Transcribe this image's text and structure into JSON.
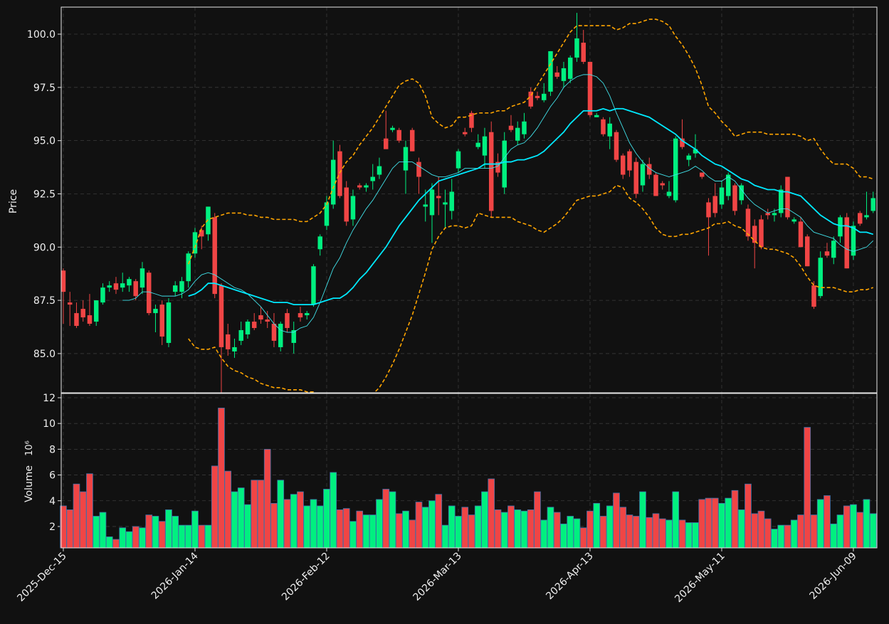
{
  "chart_data": {
    "type": "candlestick",
    "price_label": "Price",
    "volume_label": "Volume",
    "volume_scale_label": "10⁶",
    "categories": [
      "2025-Dec-15",
      null,
      null,
      null,
      null,
      null,
      null,
      null,
      null,
      null,
      null,
      null,
      null,
      null,
      null,
      null,
      null,
      null,
      null,
      null,
      "2026-Jan-14",
      null,
      null,
      null,
      null,
      null,
      null,
      null,
      null,
      null,
      null,
      null,
      null,
      null,
      null,
      null,
      null,
      null,
      null,
      null,
      "2026-Feb-12",
      null,
      null,
      null,
      null,
      null,
      null,
      null,
      null,
      null,
      null,
      null,
      null,
      null,
      null,
      null,
      null,
      null,
      null,
      null,
      "2026-Mar-13",
      null,
      null,
      null,
      null,
      null,
      null,
      null,
      null,
      null,
      null,
      null,
      null,
      null,
      null,
      null,
      null,
      null,
      null,
      null,
      "2026-Apr-13",
      null,
      null,
      null,
      null,
      null,
      null,
      null,
      null,
      null,
      null,
      null,
      null,
      null,
      null,
      null,
      null,
      null,
      null,
      null,
      "2026-May-11",
      null,
      null,
      null,
      null,
      null,
      null,
      null,
      null,
      null,
      null,
      null,
      null,
      null,
      null,
      null,
      null,
      null,
      null,
      null,
      "2026-Jun-09",
      null,
      null,
      null
    ],
    "open": [
      88.9,
      87.4,
      86.9,
      87.1,
      86.8,
      86.5,
      87.4,
      88.1,
      88.3,
      88.1,
      88.2,
      88.4,
      88.1,
      88.8,
      86.9,
      87.3,
      85.5,
      87.9,
      87.9,
      88.4,
      89.7,
      90.8,
      90.6,
      91.4,
      88.2,
      85.9,
      85.1,
      85.6,
      85.9,
      86.5,
      86.8,
      86.6,
      86.4,
      85.3,
      86.9,
      85.5,
      86.9,
      86.8,
      87.3,
      89.9,
      91.0,
      92.0,
      94.5,
      92.8,
      91.3,
      92.9,
      92.8,
      93.1,
      93.4,
      95.1,
      95.5,
      95.5,
      93.6,
      95.5,
      94.0,
      91.9,
      91.5,
      92.4,
      92.0,
      91.7,
      93.7,
      95.4,
      96.3,
      94.7,
      94.3,
      95.4,
      94.0,
      92.8,
      95.7,
      95.0,
      95.3,
      97.3,
      97.1,
      96.9,
      97.3,
      98.2,
      97.8,
      97.9,
      98.9,
      99.6,
      98.7,
      96.1,
      96.0,
      95.2,
      95.4,
      94.3,
      94.5,
      94.0,
      92.9,
      93.9,
      93.4,
      93.0,
      92.4,
      92.2,
      95.1,
      94.1,
      94.4,
      93.5,
      92.1,
      92.4,
      92.0,
      92.4,
      92.9,
      92.2,
      91.8,
      91.0,
      91.3,
      91.6,
      91.5,
      91.6,
      93.3,
      91.2,
      91.2,
      90.5,
      88.2,
      87.7,
      89.8,
      89.5,
      90.5,
      91.4,
      89.6,
      91.6,
      91.4,
      91.7
    ],
    "high": [
      89.0,
      87.9,
      87.4,
      87.5,
      87.8,
      87.5,
      88.3,
      88.4,
      88.6,
      88.8,
      88.6,
      88.5,
      89.3,
      88.9,
      87.3,
      87.5,
      87.6,
      88.4,
      88.6,
      89.8,
      90.9,
      91.0,
      91.9,
      91.6,
      88.3,
      86.4,
      85.7,
      86.5,
      86.6,
      86.9,
      87.2,
      87.0,
      86.9,
      86.5,
      87.1,
      86.5,
      87.2,
      87.0,
      89.2,
      90.6,
      92.4,
      95.0,
      94.8,
      93.1,
      92.7,
      93.0,
      93.0,
      93.9,
      94.2,
      96.4,
      95.7,
      95.6,
      95.0,
      95.6,
      94.2,
      92.7,
      93.0,
      93.3,
      92.7,
      93.2,
      94.6,
      95.6,
      96.4,
      95.3,
      95.6,
      95.9,
      94.4,
      95.4,
      96.2,
      95.9,
      96.3,
      97.5,
      97.3,
      97.7,
      99.2,
      98.5,
      98.7,
      99.0,
      101.0,
      100.2,
      98.7,
      96.3,
      96.1,
      96.1,
      95.5,
      94.4,
      94.6,
      94.2,
      94.1,
      94.2,
      93.5,
      93.1,
      93.1,
      95.2,
      96.0,
      94.4,
      95.3,
      93.5,
      92.3,
      93.0,
      93.1,
      93.5,
      93.0,
      93.0,
      92.0,
      91.3,
      91.5,
      91.8,
      91.8,
      92.9,
      93.3,
      91.4,
      91.4,
      90.6,
      88.4,
      89.8,
      90.2,
      90.5,
      91.5,
      91.6,
      91.2,
      91.7,
      92.6,
      92.6
    ],
    "low": [
      86.4,
      86.3,
      86.2,
      86.5,
      86.3,
      86.3,
      87.3,
      87.9,
      87.8,
      87.9,
      87.9,
      87.5,
      87.8,
      86.8,
      86.0,
      85.4,
      85.3,
      87.7,
      87.6,
      88.1,
      89.5,
      89.9,
      90.3,
      87.6,
      82.9,
      84.9,
      84.8,
      85.4,
      85.7,
      86.1,
      86.4,
      86.2,
      85.3,
      85.1,
      86.0,
      85.0,
      86.5,
      86.6,
      87.2,
      89.6,
      90.8,
      91.8,
      92.3,
      91.0,
      91.0,
      92.7,
      92.6,
      92.7,
      93.2,
      94.6,
      95.4,
      94.9,
      92.5,
      94.5,
      92.5,
      91.2,
      90.2,
      91.5,
      90.9,
      91.3,
      93.5,
      95.2,
      95.4,
      94.6,
      93.7,
      91.4,
      93.3,
      92.5,
      95.4,
      94.8,
      95.1,
      96.5,
      96.9,
      96.8,
      97.1,
      97.9,
      97.5,
      97.7,
      98.7,
      98.6,
      96.1,
      96.1,
      95.2,
      94.6,
      94.0,
      93.2,
      93.3,
      92.3,
      92.6,
      93.2,
      92.4,
      92.7,
      92.3,
      92.1,
      94.6,
      93.8,
      94.2,
      93.2,
      89.6,
      91.4,
      91.8,
      92.2,
      91.5,
      92.0,
      90.3,
      89.0,
      89.9,
      91.3,
      91.2,
      91.4,
      91.3,
      91.1,
      90.0,
      89.1,
      87.1,
      87.6,
      89.5,
      89.2,
      90.2,
      89.0,
      89.4,
      91.0,
      91.3,
      91.6
    ],
    "close": [
      87.9,
      87.3,
      86.3,
      86.7,
      86.4,
      87.5,
      88.1,
      88.2,
      88.0,
      88.3,
      88.5,
      87.7,
      89.0,
      86.9,
      87.1,
      85.8,
      87.4,
      88.2,
      88.4,
      89.7,
      90.7,
      90.5,
      91.9,
      87.8,
      85.3,
      85.2,
      85.3,
      86.1,
      86.5,
      86.2,
      86.6,
      86.5,
      85.6,
      86.4,
      86.2,
      86.1,
      86.7,
      86.9,
      89.1,
      90.5,
      92.1,
      94.1,
      92.4,
      91.2,
      92.4,
      92.8,
      92.9,
      93.3,
      93.8,
      94.6,
      95.6,
      95.0,
      94.7,
      94.5,
      93.3,
      92.0,
      92.7,
      92.3,
      92.1,
      92.6,
      94.5,
      95.3,
      95.6,
      94.9,
      95.2,
      91.7,
      93.5,
      95.0,
      95.5,
      95.6,
      95.9,
      96.6,
      97.0,
      97.2,
      99.2,
      98.0,
      98.4,
      98.9,
      99.8,
      98.7,
      96.2,
      96.2,
      95.3,
      95.8,
      94.1,
      93.4,
      93.6,
      92.5,
      93.9,
      93.4,
      92.4,
      92.9,
      92.6,
      95.1,
      94.7,
      94.3,
      94.6,
      93.3,
      91.4,
      91.6,
      92.8,
      93.4,
      91.7,
      92.9,
      90.5,
      90.2,
      90.0,
      91.5,
      91.6,
      92.7,
      91.4,
      91.3,
      90.0,
      89.1,
      87.2,
      89.5,
      89.6,
      90.3,
      91.4,
      89.0,
      91.0,
      91.1,
      91.5,
      92.3
    ],
    "volume": [
      3.6,
      3.3,
      5.3,
      4.7,
      6.1,
      2.8,
      3.1,
      1.2,
      1.0,
      1.9,
      1.6,
      2.0,
      1.9,
      2.9,
      2.8,
      2.4,
      3.3,
      2.8,
      2.1,
      2.1,
      3.2,
      2.1,
      2.1,
      6.7,
      11.2,
      6.3,
      4.7,
      5.0,
      3.7,
      5.6,
      5.6,
      8.0,
      3.8,
      5.6,
      4.1,
      4.5,
      4.7,
      3.6,
      4.1,
      3.6,
      4.9,
      6.2,
      3.3,
      3.4,
      2.4,
      3.2,
      2.9,
      2.9,
      4.1,
      4.9,
      4.7,
      3.0,
      3.2,
      2.5,
      3.9,
      3.5,
      4.0,
      4.5,
      2.1,
      3.6,
      2.8,
      3.5,
      2.9,
      3.6,
      4.7,
      5.7,
      3.3,
      3.1,
      3.6,
      3.3,
      3.2,
      3.3,
      4.7,
      2.5,
      3.5,
      3.1,
      2.2,
      2.8,
      2.6,
      1.9,
      3.2,
      3.8,
      2.8,
      3.6,
      4.6,
      3.5,
      2.9,
      2.8,
      4.7,
      2.7,
      3.0,
      2.6,
      2.5,
      4.7,
      2.5,
      2.3,
      2.3,
      4.1,
      4.2,
      4.2,
      3.8,
      4.2,
      4.8,
      3.3,
      5.3,
      3.0,
      3.2,
      2.6,
      1.8,
      2.1,
      2.1,
      2.5,
      2.9,
      9.7,
      2.9,
      4.1,
      4.4,
      2.2,
      2.9,
      3.6,
      3.7,
      3.1,
      4.1,
      3.0
    ],
    "up_color": "#00f080",
    "down_color": "#f04545",
    "volume_edge_color": "#3d6fa8",
    "overlays": [
      {
        "color": "#ffa500",
        "width": 1.6,
        "dash": true,
        "values": [
          null,
          null,
          null,
          null,
          null,
          null,
          null,
          null,
          null,
          null,
          null,
          null,
          null,
          null,
          null,
          null,
          null,
          null,
          null,
          89.2,
          90.0,
          90.9,
          91.3,
          91.4,
          91.5,
          91.6,
          91.6,
          91.6,
          91.5,
          91.5,
          91.4,
          91.4,
          91.3,
          91.3,
          91.3,
          91.3,
          91.2,
          91.2,
          91.4,
          91.6,
          92.0,
          92.8,
          93.5,
          94.0,
          94.3,
          94.8,
          95.2,
          95.6,
          96.1,
          96.6,
          97.1,
          97.6,
          97.8,
          97.9,
          97.7,
          97.1,
          96.1,
          95.8,
          95.6,
          95.7,
          96.1,
          96.1,
          96.2,
          96.3,
          96.3,
          96.3,
          96.4,
          96.4,
          96.6,
          96.7,
          96.8,
          97.1,
          97.6,
          98.1,
          98.6,
          99.1,
          99.6,
          100.1,
          100.4,
          100.4,
          100.4,
          100.4,
          100.4,
          100.4,
          100.2,
          100.3,
          100.5,
          100.5,
          100.6,
          100.7,
          100.7,
          100.6,
          100.4,
          99.9,
          99.5,
          99.0,
          98.4,
          97.6,
          96.6,
          96.3,
          95.9,
          95.6,
          95.2,
          95.3,
          95.4,
          95.4,
          95.4,
          95.3,
          95.3,
          95.3,
          95.3,
          95.3,
          95.2,
          95.0,
          95.1,
          94.6,
          94.2,
          93.9,
          93.9,
          93.9,
          93.7,
          93.3,
          93.3,
          93.2
        ]
      },
      {
        "color": "#ffa500",
        "width": 1.6,
        "dash": true,
        "values": [
          null,
          null,
          null,
          null,
          null,
          null,
          null,
          null,
          null,
          null,
          null,
          null,
          null,
          null,
          null,
          null,
          null,
          null,
          null,
          85.7,
          85.3,
          85.2,
          85.2,
          85.3,
          84.8,
          84.4,
          84.2,
          84.1,
          83.9,
          83.8,
          83.6,
          83.5,
          83.4,
          83.4,
          83.3,
          83.3,
          83.3,
          83.2,
          83.2,
          83.0,
          82.7,
          82.4,
          82.2,
          82.0,
          82.1,
          82.4,
          82.8,
          83.1,
          83.4,
          83.9,
          84.5,
          85.2,
          86.0,
          86.8,
          87.8,
          88.8,
          89.9,
          90.5,
          90.9,
          91.0,
          91.0,
          90.9,
          91.0,
          91.6,
          91.5,
          91.4,
          91.4,
          91.4,
          91.4,
          91.2,
          91.1,
          91.0,
          90.8,
          90.7,
          90.9,
          91.1,
          91.4,
          91.8,
          92.2,
          92.3,
          92.4,
          92.4,
          92.5,
          92.6,
          92.9,
          92.8,
          92.3,
          92.1,
          91.8,
          91.4,
          90.9,
          90.6,
          90.5,
          90.5,
          90.6,
          90.6,
          90.7,
          90.8,
          90.9,
          91.1,
          91.1,
          91.2,
          91.0,
          90.9,
          90.6,
          90.3,
          90.0,
          89.9,
          89.9,
          89.8,
          89.7,
          89.5,
          89.1,
          88.6,
          88.2,
          88.1,
          88.1,
          88.1,
          88.0,
          87.9,
          87.9,
          88.0,
          88.0,
          88.1
        ]
      },
      {
        "color": "#40e0e8",
        "width": 0.9,
        "dash": false,
        "values": [
          null,
          null,
          null,
          null,
          null,
          null,
          null,
          null,
          null,
          87.5,
          87.5,
          87.6,
          87.9,
          87.9,
          87.8,
          87.7,
          87.7,
          87.7,
          87.8,
          88.0,
          88.4,
          88.7,
          88.8,
          88.7,
          88.5,
          88.3,
          88.1,
          88.0,
          87.8,
          87.5,
          87.2,
          86.8,
          86.4,
          86.1,
          86.0,
          86.0,
          86.2,
          86.3,
          86.7,
          87.4,
          88.2,
          89.0,
          89.5,
          90.2,
          90.8,
          91.3,
          91.8,
          92.2,
          92.7,
          93.2,
          93.7,
          94.0,
          94.0,
          94.0,
          93.8,
          93.6,
          93.4,
          93.3,
          93.3,
          93.4,
          93.5,
          93.7,
          93.7,
          93.7,
          93.7,
          93.7,
          93.8,
          94.2,
          94.6,
          94.8,
          94.9,
          95.2,
          95.6,
          96.1,
          96.6,
          97.0,
          97.5,
          97.8,
          98.0,
          98.1,
          98.1,
          98.0,
          97.7,
          97.1,
          96.3,
          95.6,
          94.9,
          94.4,
          94.0,
          93.7,
          93.5,
          93.4,
          93.3,
          93.4,
          93.5,
          93.6,
          93.8,
          93.6,
          93.3,
          93.1,
          93.1,
          93.3,
          93.1,
          92.7,
          92.3,
          92.0,
          91.8,
          91.6,
          91.7,
          91.8,
          91.8,
          91.6,
          91.4,
          91.0,
          90.7,
          90.6,
          90.5,
          90.4,
          90.1,
          89.9,
          89.8,
          89.9,
          90.0,
          90.3
        ]
      },
      {
        "color": "#00eaff",
        "width": 1.8,
        "dash": false,
        "values": [
          null,
          null,
          null,
          null,
          null,
          null,
          null,
          null,
          null,
          null,
          null,
          null,
          null,
          null,
          null,
          null,
          null,
          null,
          null,
          87.7,
          87.8,
          88.0,
          88.3,
          88.3,
          88.2,
          88.1,
          88.0,
          87.9,
          87.8,
          87.7,
          87.6,
          87.5,
          87.4,
          87.4,
          87.4,
          87.3,
          87.3,
          87.3,
          87.3,
          87.4,
          87.5,
          87.6,
          87.6,
          87.8,
          88.1,
          88.5,
          88.8,
          89.2,
          89.6,
          90.0,
          90.5,
          91.0,
          91.4,
          91.8,
          92.2,
          92.5,
          92.8,
          93.1,
          93.2,
          93.3,
          93.4,
          93.5,
          93.6,
          93.7,
          93.9,
          93.9,
          93.9,
          94.0,
          94.0,
          94.1,
          94.1,
          94.2,
          94.3,
          94.5,
          94.8,
          95.1,
          95.4,
          95.8,
          96.1,
          96.4,
          96.4,
          96.4,
          96.5,
          96.4,
          96.5,
          96.5,
          96.4,
          96.3,
          96.2,
          96.1,
          95.9,
          95.7,
          95.5,
          95.3,
          95.0,
          94.8,
          94.6,
          94.3,
          94.1,
          93.9,
          93.8,
          93.6,
          93.4,
          93.2,
          93.1,
          92.9,
          92.8,
          92.7,
          92.7,
          92.6,
          92.6,
          92.5,
          92.4,
          92.1,
          91.8,
          91.5,
          91.3,
          91.1,
          91.0,
          91.0,
          90.9,
          90.7,
          90.7,
          90.6
        ]
      }
    ],
    "ylim": [
      83.16,
      101.27
    ],
    "yticks": [
      {
        "value": 85,
        "label": "85.0"
      },
      87.5,
      {
        "value": 90,
        "label": "90.0"
      },
      92.5,
      {
        "value": 95,
        "label": "95.0"
      },
      97.5,
      {
        "value": 100,
        "label": "100.0"
      }
    ],
    "volume_ylim": [
      0.34,
      12.33
    ],
    "volume_yticks": [
      2,
      4,
      6,
      8,
      10,
      12
    ],
    "grid": true
  }
}
